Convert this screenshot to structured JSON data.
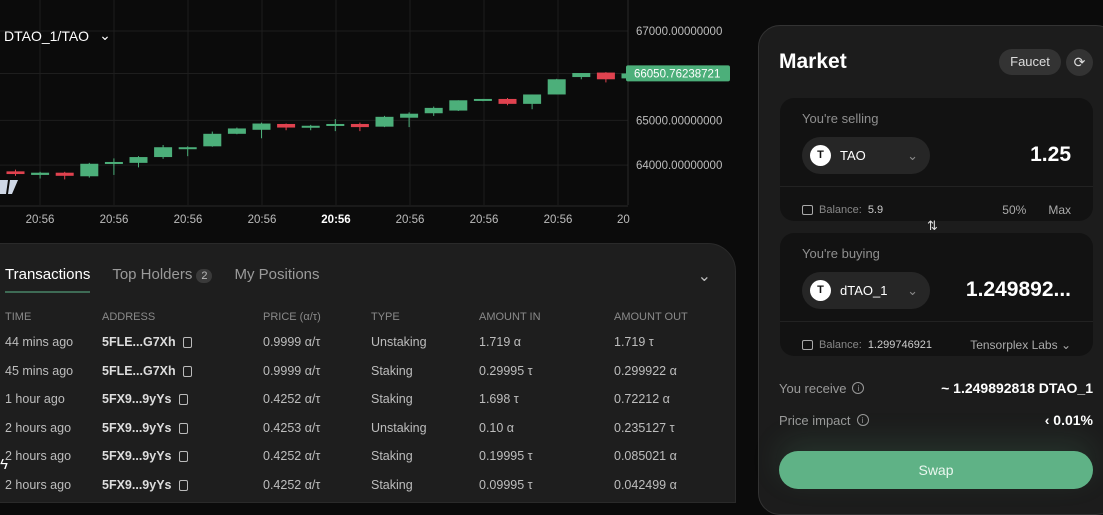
{
  "chart": {
    "pair": "DTAO_1/TAO",
    "current_price_label": "66050.76238721",
    "colors": {
      "up": "#4caf7a",
      "down": "#e0424f",
      "grid": "#1e1e1e"
    },
    "chart_data": {
      "type": "candlestick",
      "y_ticks": [
        "67000.00000000",
        "65000.00000000",
        "64000.00000000"
      ],
      "x_ticks": [
        "20:56",
        "20:56",
        "20:56",
        "20:56",
        "20:56",
        "20:56",
        "20:56",
        "20:56",
        "20"
      ],
      "ylim": [
        63100,
        67700
      ],
      "candles": [
        [
          63860,
          63900,
          63760,
          63800
        ],
        [
          63780,
          63850,
          63700,
          63830
        ],
        [
          63830,
          63850,
          63680,
          63760
        ],
        [
          63750,
          64050,
          63720,
          64030
        ],
        [
          64060,
          64150,
          63780,
          64070
        ],
        [
          64050,
          64200,
          63950,
          64180
        ],
        [
          64180,
          64450,
          64140,
          64400
        ],
        [
          64390,
          64420,
          64200,
          64400
        ],
        [
          64420,
          64750,
          64410,
          64700
        ],
        [
          64700,
          64840,
          64690,
          64820
        ],
        [
          64790,
          64950,
          64600,
          64930
        ],
        [
          64920,
          64930,
          64780,
          64840
        ],
        [
          64850,
          64900,
          64780,
          64880
        ],
        [
          64890,
          65030,
          64760,
          64920
        ],
        [
          64920,
          64950,
          64760,
          64850
        ],
        [
          64860,
          65100,
          64850,
          65080
        ],
        [
          65060,
          65180,
          64850,
          65150
        ],
        [
          65160,
          65310,
          65100,
          65280
        ],
        [
          65220,
          65450,
          65210,
          65450
        ],
        [
          65440,
          65480,
          65430,
          65480
        ],
        [
          65480,
          65500,
          65340,
          65370
        ],
        [
          65370,
          65580,
          65250,
          65580
        ],
        [
          65580,
          65930,
          65580,
          65920
        ],
        [
          65970,
          66060,
          65920,
          66060
        ],
        [
          66070,
          66080,
          65850,
          65920
        ],
        [
          65940,
          66050,
          65900,
          66050
        ]
      ]
    }
  },
  "panel": {
    "tabs": [
      {
        "label": "Transactions"
      },
      {
        "label": "Top Holders",
        "badge": "2"
      },
      {
        "label": "My Positions"
      }
    ],
    "columns": [
      "TIME",
      "ADDRESS",
      "PRICE  (α/τ)",
      "TYPE",
      "AMOUNT IN",
      "AMOUNT OUT"
    ],
    "rows": [
      [
        "44 mins ago",
        "5FLE...G7Xh",
        "0.9999 α/τ",
        "Unstaking",
        "1.719 α",
        "1.719 τ"
      ],
      [
        "45 mins ago",
        "5FLE...G7Xh",
        "0.9999 α/τ",
        "Staking",
        "0.29995 τ",
        "0.299922 α"
      ],
      [
        "1 hour ago",
        "5FX9...9yYs",
        "0.4252 α/τ",
        "Staking",
        "1.698 τ",
        "0.72212 α"
      ],
      [
        "2 hours ago",
        "5FX9...9yYs",
        "0.4253 α/τ",
        "Unstaking",
        "0.10 α",
        "0.235127 τ"
      ],
      [
        "2 hours ago",
        "5FX9...9yYs",
        "0.4252 α/τ",
        "Staking",
        "0.19995 τ",
        "0.085021 α"
      ],
      [
        "2 hours ago",
        "5FX9...9yYs",
        "0.4252 α/τ",
        "Staking",
        "0.09995 τ",
        "0.042499 α"
      ]
    ]
  },
  "market": {
    "title": "Market",
    "faucet": "Faucet",
    "selling": {
      "label": "You're selling",
      "token": "TAO",
      "token_icon": "T",
      "amount": "1.25",
      "balance_label": "Balance:",
      "balance": "5.9",
      "half": "50%",
      "max": "Max"
    },
    "buying": {
      "label": "You're buying",
      "token": "dTAO_1",
      "token_icon": "T",
      "amount": "1.249892...",
      "balance_label": "Balance:",
      "balance": "1.299746921",
      "validator": "Tensorplex Labs"
    },
    "receive_label": "You receive",
    "receive_value": "~ 1.249892818 DTAO_1",
    "impact_label": "Price impact",
    "impact_value": "‹ 0.01%",
    "swap": "Swap"
  }
}
